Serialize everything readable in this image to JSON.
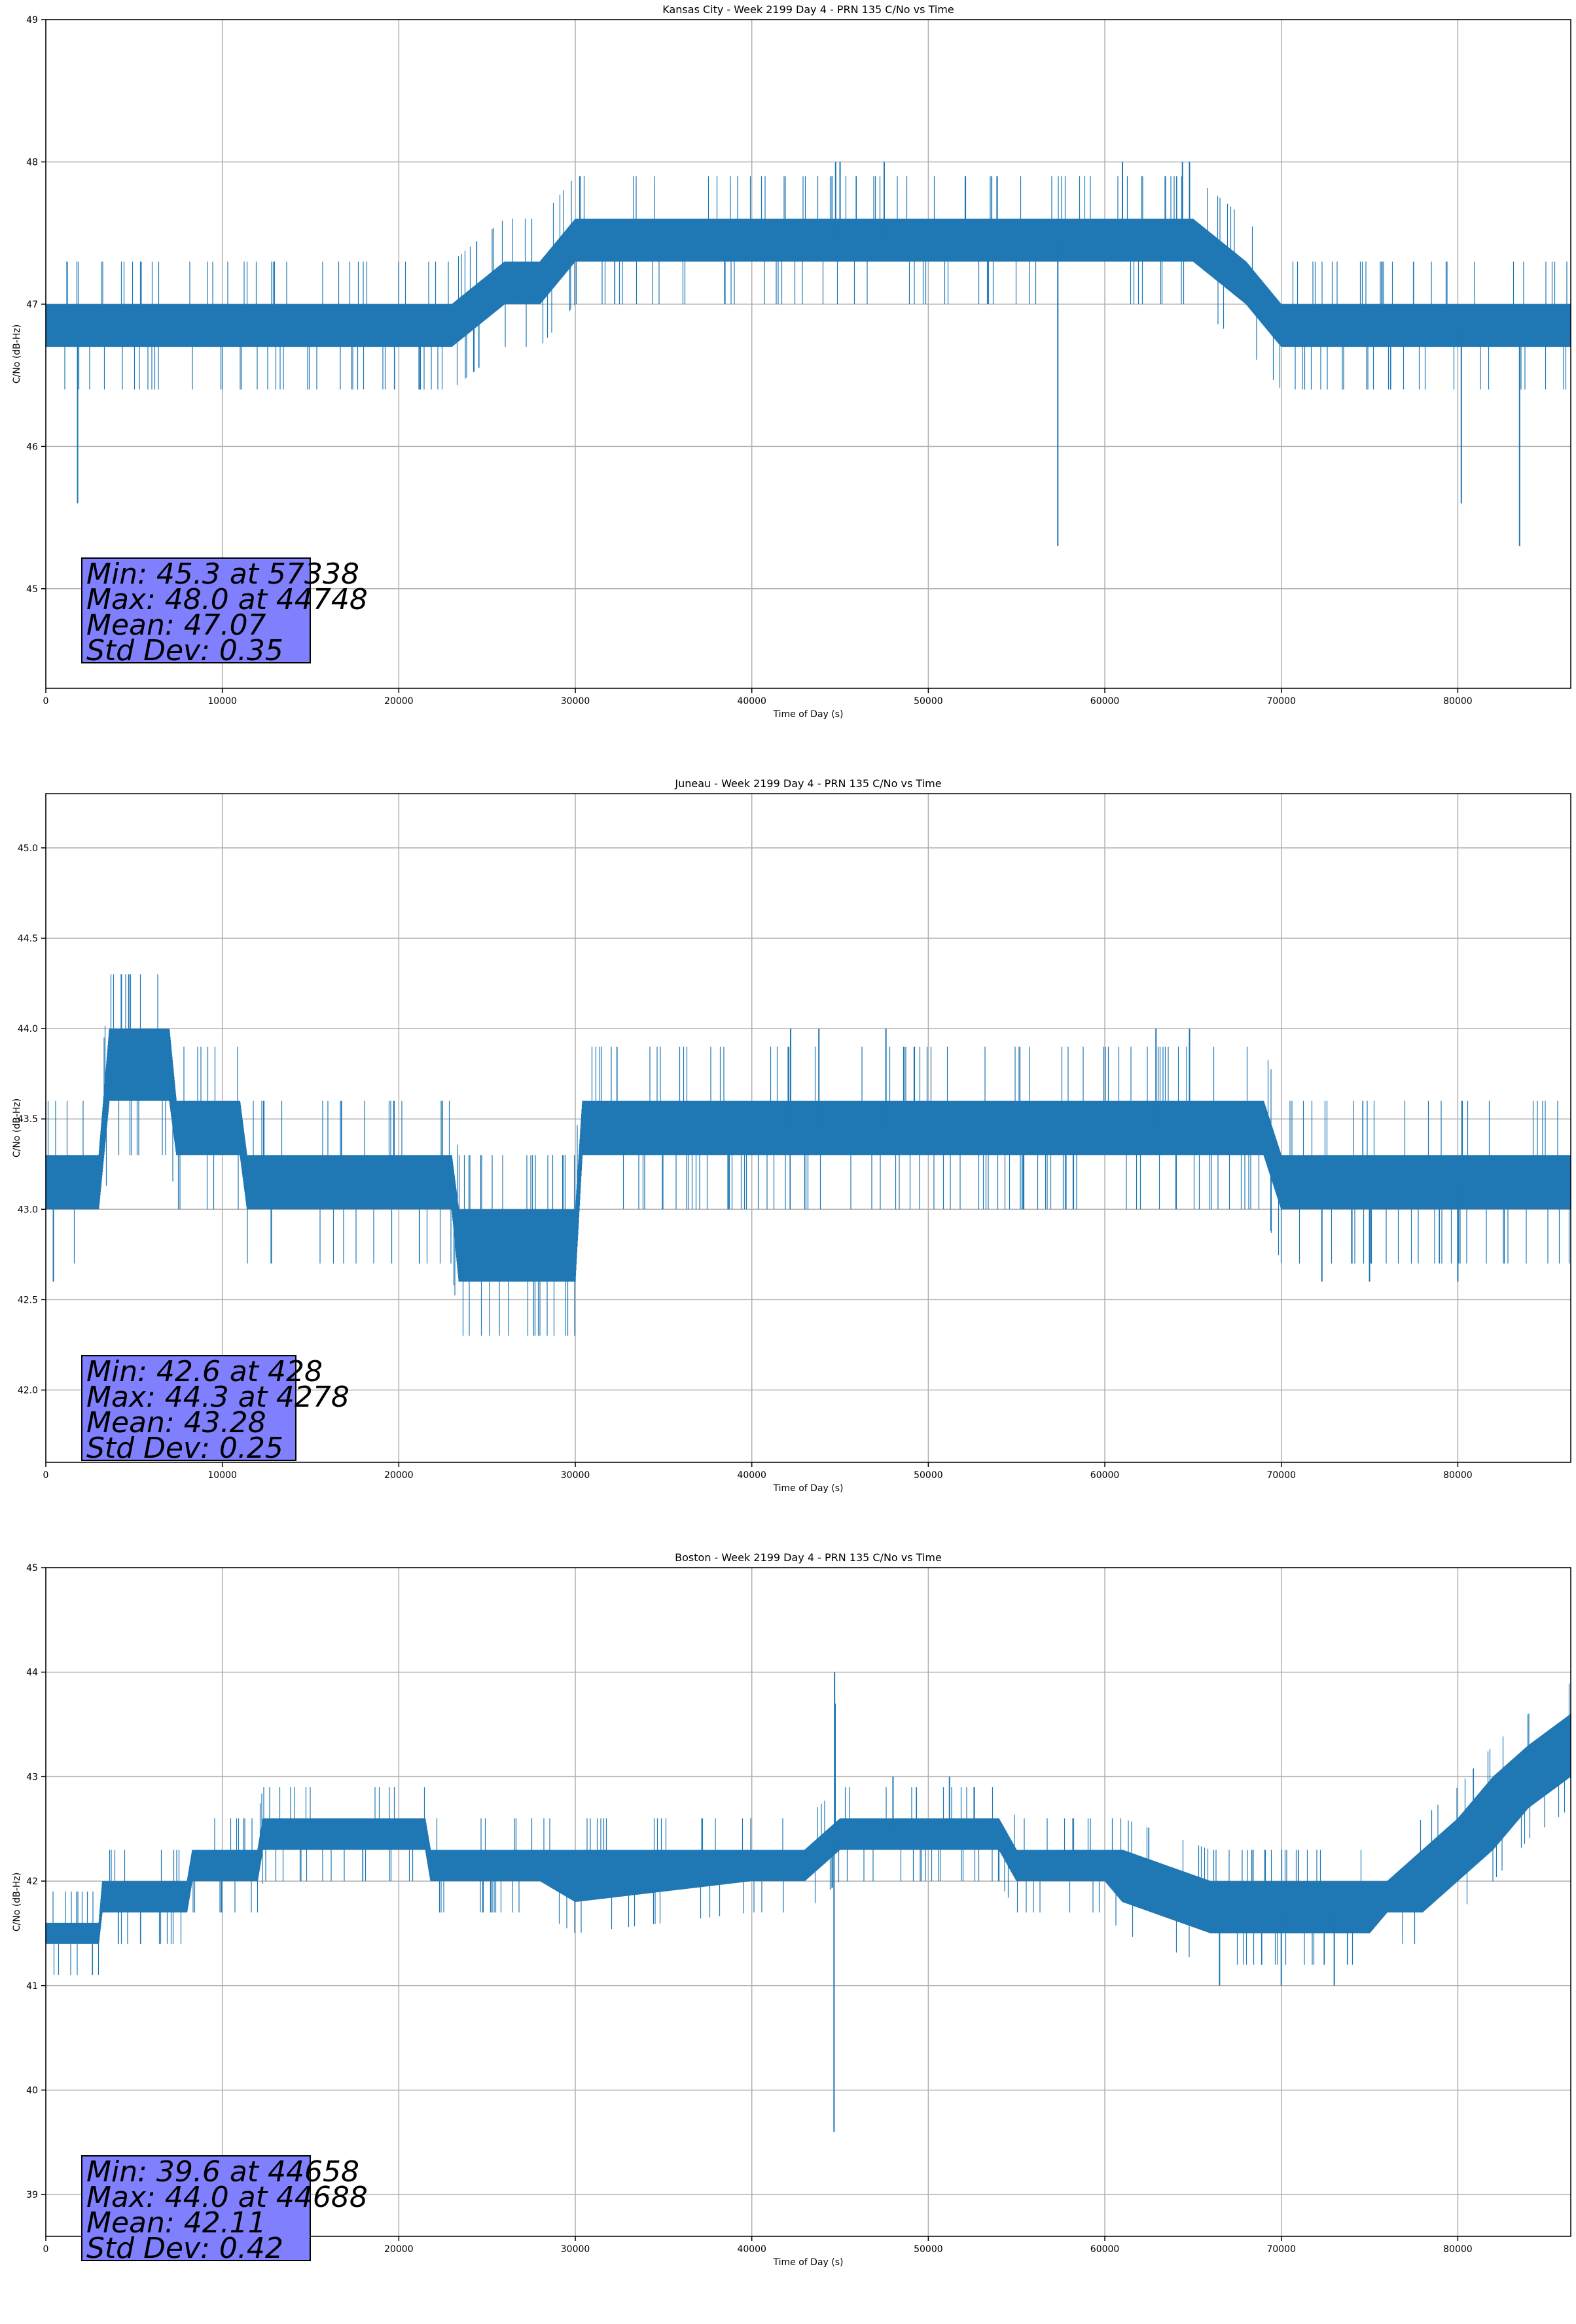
{
  "chart_data": [
    {
      "type": "line",
      "title": "Kansas City - Week 2199 Day 4 - PRN 135 C/No vs Time",
      "xlabel": "Time of Day (s)",
      "ylabel": "C/No (dB-Hz)",
      "xlim": [
        0,
        86400
      ],
      "ylim": [
        44.3,
        49.0
      ],
      "xticks": [
        0,
        10000,
        20000,
        30000,
        40000,
        50000,
        60000,
        70000,
        80000
      ],
      "yticks": [
        45,
        46,
        47,
        48,
        49
      ],
      "grid": true,
      "series_color": "#1f77b4",
      "band_profile": {
        "x": [
          0,
          2000,
          4000,
          6000,
          10000,
          15000,
          20000,
          23000,
          26000,
          28000,
          30000,
          35000,
          40000,
          45000,
          50000,
          55000,
          60000,
          65000,
          68000,
          70000,
          72000,
          75000,
          80000,
          86400
        ],
        "low": [
          46.7,
          46.7,
          46.7,
          46.7,
          46.7,
          46.7,
          46.7,
          46.7,
          47.0,
          47.0,
          47.3,
          47.3,
          47.3,
          47.3,
          47.3,
          47.3,
          47.3,
          47.3,
          47.0,
          46.7,
          46.7,
          46.7,
          46.7,
          46.7
        ],
        "high": [
          47.0,
          47.0,
          47.0,
          47.0,
          47.0,
          47.0,
          47.0,
          47.0,
          47.3,
          47.3,
          47.6,
          47.6,
          47.6,
          47.6,
          47.6,
          47.6,
          47.6,
          47.6,
          47.3,
          47.0,
          47.0,
          47.0,
          47.0,
          47.0
        ]
      },
      "spikes": [
        {
          "x": 1800,
          "y": 45.6
        },
        {
          "x": 57338,
          "y": 45.3
        },
        {
          "x": 80200,
          "y": 45.6
        },
        {
          "x": 83500,
          "y": 45.3
        },
        {
          "x": 44748,
          "y": 48.0
        },
        {
          "x": 45000,
          "y": 48.0
        },
        {
          "x": 47500,
          "y": 48.0
        },
        {
          "x": 61000,
          "y": 48.0
        },
        {
          "x": 64400,
          "y": 48.0
        },
        {
          "x": 64800,
          "y": 48.0
        }
      ],
      "stats": {
        "min": "Min: 45.3 at 57338",
        "max": "Max: 48.0 at 44748",
        "mean": "Mean: 47.07",
        "std": "Std Dev: 0.35"
      }
    },
    {
      "type": "line",
      "title": "Juneau - Week 2199 Day 4 - PRN 135 C/No vs Time",
      "xlabel": "Time of Day (s)",
      "ylabel": "C/No (dB-Hz)",
      "xlim": [
        0,
        86400
      ],
      "ylim": [
        41.6,
        45.3
      ],
      "xticks": [
        0,
        10000,
        20000,
        30000,
        40000,
        50000,
        60000,
        70000,
        80000
      ],
      "yticks": [
        42.0,
        42.5,
        43.0,
        43.5,
        44.0,
        44.5,
        45.0
      ],
      "grid": true,
      "series_color": "#1f77b4",
      "band_profile": {
        "x": [
          0,
          3000,
          3600,
          7000,
          7400,
          11000,
          11400,
          20000,
          23000,
          23400,
          30000,
          30400,
          40000,
          50000,
          60000,
          69000,
          70000,
          70400,
          86400
        ],
        "low": [
          43.0,
          43.0,
          43.6,
          43.6,
          43.3,
          43.3,
          43.0,
          43.0,
          43.0,
          42.6,
          42.6,
          43.3,
          43.3,
          43.3,
          43.3,
          43.3,
          43.0,
          43.0,
          43.0
        ],
        "high": [
          43.3,
          43.3,
          44.0,
          44.0,
          43.6,
          43.6,
          43.3,
          43.3,
          43.3,
          43.0,
          43.0,
          43.6,
          43.6,
          43.6,
          43.6,
          43.6,
          43.3,
          43.3,
          43.3
        ]
      },
      "spikes": [
        {
          "x": 428,
          "y": 42.6
        },
        {
          "x": 4278,
          "y": 44.3
        },
        {
          "x": 4700,
          "y": 44.3
        },
        {
          "x": 42200,
          "y": 44.0
        },
        {
          "x": 43800,
          "y": 44.0
        },
        {
          "x": 47600,
          "y": 44.0
        },
        {
          "x": 62900,
          "y": 44.0
        },
        {
          "x": 64800,
          "y": 44.0
        },
        {
          "x": 80000,
          "y": 42.6
        },
        {
          "x": 72300,
          "y": 42.6
        },
        {
          "x": 75000,
          "y": 42.6
        }
      ],
      "stats": {
        "min": "Min: 42.6 at 428",
        "max": "Max: 44.3 at 4278",
        "mean": "Mean: 43.28",
        "std": "Std Dev: 0.25"
      }
    },
    {
      "type": "line",
      "title": "Boston - Week 2199 Day 4 - PRN 135 C/No vs Time",
      "xlabel": "Time of Day (s)",
      "ylabel": "C/No (dB-Hz)",
      "xlim": [
        0,
        86400
      ],
      "ylim": [
        38.6,
        45.0
      ],
      "xticks": [
        0,
        10000,
        20000,
        30000,
        40000,
        50000,
        60000,
        70000,
        80000
      ],
      "yticks": [
        39,
        40,
        41,
        42,
        43,
        44,
        45
      ],
      "grid": true,
      "series_color": "#1f77b4",
      "band_profile": {
        "x": [
          0,
          3000,
          3200,
          8000,
          8300,
          12000,
          12300,
          21500,
          21800,
          28000,
          30000,
          40000,
          41000,
          43000,
          45000,
          50000,
          54000,
          55000,
          60000,
          61000,
          66000,
          70000,
          75000,
          76000,
          78000,
          80000,
          82000,
          84000,
          86400
        ],
        "low": [
          41.4,
          41.4,
          41.7,
          41.7,
          42.0,
          42.0,
          42.3,
          42.3,
          42.0,
          42.0,
          41.8,
          42.0,
          42.0,
          42.0,
          42.3,
          42.3,
          42.3,
          42.0,
          42.0,
          41.8,
          41.5,
          41.5,
          41.5,
          41.7,
          41.7,
          42.0,
          42.3,
          42.7,
          43.0
        ],
        "high": [
          41.6,
          41.6,
          42.0,
          42.0,
          42.3,
          42.3,
          42.6,
          42.6,
          42.3,
          42.3,
          42.3,
          42.3,
          42.3,
          42.3,
          42.6,
          42.6,
          42.6,
          42.3,
          42.3,
          42.3,
          42.0,
          42.0,
          42.0,
          42.0,
          42.3,
          42.6,
          43.0,
          43.3,
          43.6
        ]
      },
      "spikes": [
        {
          "x": 44658,
          "y": 39.6
        },
        {
          "x": 44688,
          "y": 44.0
        },
        {
          "x": 44720,
          "y": 43.7
        },
        {
          "x": 48000,
          "y": 43.0
        },
        {
          "x": 51200,
          "y": 43.0
        },
        {
          "x": 66500,
          "y": 41.0
        },
        {
          "x": 70000,
          "y": 41.0
        },
        {
          "x": 73000,
          "y": 41.0
        }
      ],
      "stats": {
        "min": "Min: 39.6 at 44658",
        "max": "Max: 44.0 at 44688",
        "mean": "Mean: 42.11",
        "std": "Std Dev: 0.42"
      }
    }
  ]
}
